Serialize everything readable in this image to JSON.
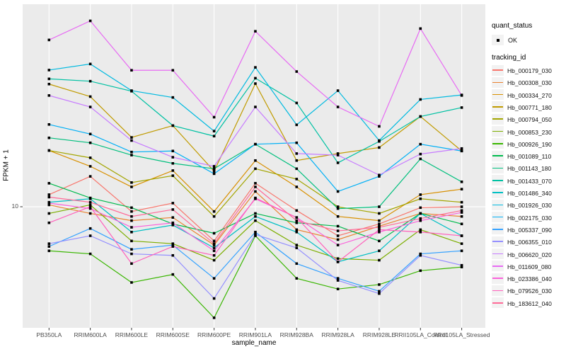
{
  "figure": {
    "background": "#FFFFFF",
    "panel_background": "#EBEBEB",
    "grid_color": "#FFFFFF"
  },
  "axes": {
    "x_title": "sample_name",
    "y_title": "FPKM + 1",
    "y_tick_label": "10",
    "tick_text_color": "#4D4D4D"
  },
  "legend": {
    "quant_status_title": "quant_status",
    "quant_status_items": [
      {
        "label": "OK",
        "marker": "black-point"
      }
    ],
    "tracking_id_title": "tracking_id"
  },
  "chart_data": {
    "type": "line",
    "title": "",
    "xlabel": "sample_name",
    "ylabel": "FPKM + 1",
    "y_scale": "log10",
    "y_breaks": [
      10
    ],
    "ylim_approx": [
      2.7,
      90
    ],
    "grid": {
      "vertical_at_each_category": true,
      "horizontal_at": [
        10
      ],
      "minor": false
    },
    "legend_position": "right",
    "point_marker": "small black square on every data point",
    "categories": [
      "PB350LA",
      "RRIM600LA",
      "RRIM600LE",
      "RRIM600SE",
      "RRIM600PE",
      "RRIM901LA",
      "RRIM928BA",
      "RRIM928LA",
      "RRIM928LE",
      "RRII105LA_Control",
      "RRII105LA_Stressed"
    ],
    "series": [
      {
        "name": "Hb_000179_030",
        "color": "#F8766D",
        "values": [
          11.4,
          13.9,
          9.5,
          10.4,
          6.9,
          12.9,
          9.6,
          7.3,
          8.3,
          9.9,
          10.0
        ]
      },
      {
        "name": "Hb_000308_030",
        "color": "#EA8331",
        "values": [
          10.2,
          9.3,
          8.6,
          8.9,
          6.6,
          11.8,
          7.8,
          7.0,
          8.1,
          9.3,
          9.0
        ]
      },
      {
        "name": "Hb_000334_270",
        "color": "#D89000",
        "values": [
          18.4,
          15.5,
          12.4,
          14.8,
          9.5,
          16.5,
          12.4,
          9.0,
          8.6,
          11.4,
          12.1
        ]
      },
      {
        "name": "Hb_000771_180",
        "color": "#C09B00",
        "values": [
          37.8,
          33.0,
          21.2,
          24.1,
          14.7,
          38.0,
          16.5,
          17.8,
          19.0,
          26.6,
          18.3
        ]
      },
      {
        "name": "Hb_000794_050",
        "color": "#A3A500",
        "values": [
          18.4,
          17.0,
          13.0,
          14.0,
          9.0,
          15.1,
          13.5,
          10.0,
          9.3,
          10.9,
          10.5
        ]
      },
      {
        "name": "Hb_000853_230",
        "color": "#7CAE00",
        "values": [
          9.3,
          10.2,
          6.9,
          6.7,
          5.6,
          8.6,
          6.6,
          5.7,
          5.6,
          7.8,
          6.7
        ]
      },
      {
        "name": "Hb_000926_190",
        "color": "#39B600",
        "values": [
          6.2,
          6.0,
          4.4,
          4.8,
          3.0,
          7.3,
          4.6,
          4.1,
          4.3,
          5.0,
          5.2
        ]
      },
      {
        "name": "Hb_001089_110",
        "color": "#00BB4E",
        "values": [
          12.9,
          11.0,
          9.9,
          8.3,
          7.5,
          9.3,
          8.4,
          8.1,
          6.9,
          9.3,
          8.3
        ]
      },
      {
        "name": "Hb_001143_180",
        "color": "#00BF7D",
        "values": [
          21.1,
          20.0,
          17.5,
          16.0,
          15.1,
          19.7,
          15.1,
          9.8,
          10.0,
          16.8,
          13.1
        ]
      },
      {
        "name": "Hb_001433_070",
        "color": "#00C1A3",
        "values": [
          40.0,
          39.0,
          35.0,
          24.1,
          21.5,
          40.3,
          30.8,
          16.1,
          20.3,
          26.6,
          29.3
        ]
      },
      {
        "name": "Hb_001486_340",
        "color": "#00BFC4",
        "values": [
          10.5,
          10.9,
          7.6,
          8.2,
          6.4,
          9.0,
          7.6,
          5.5,
          6.2,
          9.3,
          7.3
        ]
      },
      {
        "name": "Hb_001926_030",
        "color": "#00BAE0",
        "values": [
          44.0,
          47.0,
          35.2,
          32.7,
          22.7,
          45.3,
          24.3,
          35.2,
          20.5,
          32.0,
          33.6
        ]
      },
      {
        "name": "Hb_002175_030",
        "color": "#00B0F6",
        "values": [
          24.4,
          22.0,
          18.1,
          18.3,
          14.3,
          19.7,
          20.0,
          11.8,
          13.9,
          19.7,
          18.3
        ]
      },
      {
        "name": "Hb_005337_090",
        "color": "#35A2FF",
        "values": [
          6.5,
          7.9,
          6.3,
          6.6,
          4.6,
          7.6,
          5.4,
          4.6,
          4.0,
          6.0,
          6.2
        ]
      },
      {
        "name": "Hb_006355_010",
        "color": "#9590FF",
        "values": [
          6.7,
          7.3,
          6.0,
          5.9,
          3.7,
          7.4,
          6.4,
          4.5,
          3.9,
          5.9,
          5.3
        ]
      },
      {
        "name": "Hb_006620_020",
        "color": "#C77CFF",
        "values": [
          33.4,
          29.5,
          20.5,
          17.1,
          15.5,
          29.5,
          17.8,
          17.5,
          14.1,
          17.7,
          18.8
        ]
      },
      {
        "name": "Hb_011609_080",
        "color": "#E76BF3",
        "values": [
          61.0,
          75.0,
          43.9,
          43.9,
          26.4,
          67.0,
          43.3,
          29.5,
          23.9,
          69.0,
          33.4
        ]
      },
      {
        "name": "Hb_023386_040",
        "color": "#FA62DB",
        "values": [
          10.4,
          9.8,
          8.0,
          8.4,
          6.2,
          10.9,
          8.9,
          6.6,
          7.6,
          8.6,
          9.4
        ]
      },
      {
        "name": "Hb_079526_030",
        "color": "#FF62BC",
        "values": [
          8.4,
          10.0,
          5.4,
          6.5,
          5.9,
          11.0,
          8.9,
          5.5,
          7.8,
          7.6,
          7.3
        ]
      },
      {
        "name": "Hb_183612_040",
        "color": "#FF6A98",
        "values": [
          11.1,
          10.5,
          9.0,
          9.7,
          6.7,
          12.4,
          8.6,
          7.7,
          8.0,
          8.8,
          9.6
        ]
      }
    ]
  }
}
